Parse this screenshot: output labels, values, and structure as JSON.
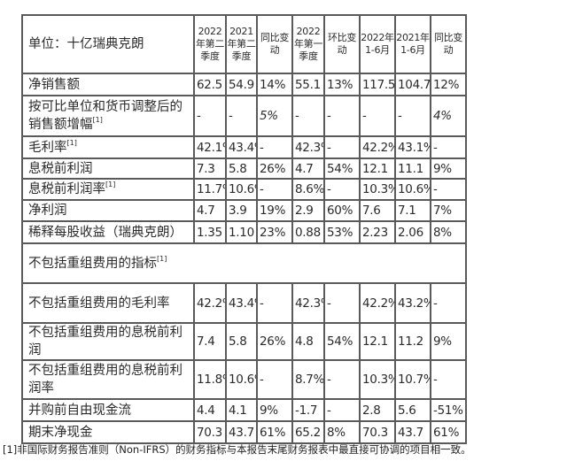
{
  "table": {
    "unit_label": "单位：十亿瑞典克朗",
    "headers": [
      "2022年第二季度",
      "2021年第二季度",
      "同比变动",
      "2022年第一季度",
      "环比变动",
      "2022年1-6月",
      "2021年1-6月",
      "同比变动"
    ],
    "rows": [
      {
        "label": "净销售额",
        "note": "",
        "values": [
          "62.5",
          "54.9",
          "14%",
          "55.1",
          "13%",
          "117.5",
          "104.7",
          "12%"
        ]
      },
      {
        "label": "按可比单位和货币调整后的销售额增幅",
        "note": "[1]",
        "values": [
          "-",
          "-",
          "5%",
          "-",
          "-",
          "-",
          "-",
          "4%"
        ]
      },
      {
        "label": "毛利率",
        "note": "[1]",
        "values": [
          "42.1%",
          "43.4%",
          "-",
          "42.3%",
          "-",
          "42.2%",
          "43.1%",
          "-"
        ]
      },
      {
        "label": "息税前利润",
        "note": "",
        "values": [
          "7.3",
          "5.8",
          "26%",
          "4.7",
          "54%",
          "12.1",
          "11.1",
          "9%"
        ]
      },
      {
        "label": "息税前利润率",
        "note": "[1]",
        "values": [
          "11.7%",
          "10.6%",
          "-",
          "8.6%",
          "-",
          "10.3%",
          "10.6%",
          "-"
        ]
      },
      {
        "label": "净利润",
        "note": "",
        "values": [
          "4.7",
          "3.9",
          "19%",
          "2.9",
          "60%",
          "7.6",
          "7.1",
          "7%"
        ]
      },
      {
        "label": "稀释每股收益（瑞典克朗）",
        "note": "",
        "values": [
          "1.35",
          "1.10",
          "23%",
          "0.88",
          "53%",
          "2.23",
          "2.06",
          "8%"
        ]
      }
    ],
    "section": {
      "label": "不包括重组费用的指标",
      "note": "[1]"
    },
    "rows2": [
      {
        "label": "不包括重组费用的毛利率",
        "values": [
          "42.2%",
          "43.4%",
          "-",
          "42.3%",
          "-",
          "42.2%",
          "43.2%",
          "-"
        ]
      },
      {
        "label": "不包括重组费用的息税前利润",
        "values": [
          "7.4",
          "5.8",
          "26%",
          "4.8",
          "54%",
          "12.1",
          "11.2",
          "9%"
        ]
      },
      {
        "label": "不包括重组费用的息税前利润率",
        "values": [
          "11.8%",
          "10.6%",
          "-",
          "8.7%",
          "-",
          "10.3%",
          "10.7%",
          "-"
        ]
      },
      {
        "label": "并购前自由现金流",
        "values": [
          "4.4",
          "4.1",
          "9%",
          "-1.7",
          "-",
          "2.8",
          "5.6",
          "-51%"
        ]
      },
      {
        "label": "期末净现金",
        "values": [
          "70.3",
          "43.7",
          "61%",
          "65.2",
          "8%",
          "70.3",
          "43.7",
          "61%"
        ]
      }
    ]
  },
  "footnote": "[1]非国际财务报告准则（Non-IFRS）的财务指标与本报告末尾财务报表中最直接可协调的项目相一致。"
}
